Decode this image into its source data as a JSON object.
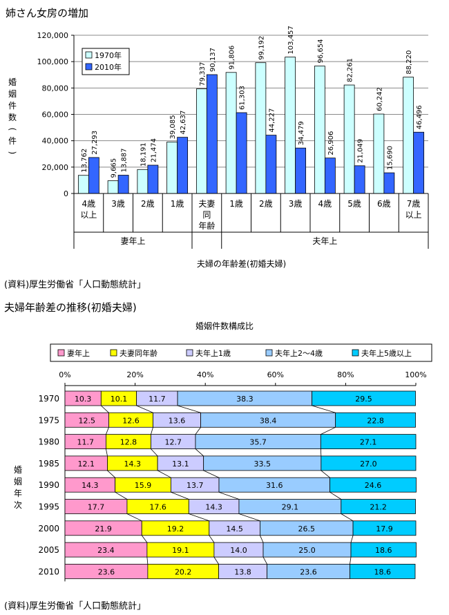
{
  "page": {
    "title1": "姉さん女房の増加",
    "source1": "(資料)厚生労働省「人口動態統計」",
    "title2": "夫婦年齢差の推移(初婚夫婦)",
    "source2": "(資料)厚生労働省「人口動態統計」"
  },
  "chart_data": [
    {
      "type": "bar",
      "ylabel": "婚姻件数(件)",
      "xlabel": "夫婦の年齢差(初婚夫婦)",
      "ylim": [
        0,
        120000
      ],
      "yticks": [
        "0",
        "20,000",
        "40,000",
        "60,000",
        "80,000",
        "100,000",
        "120,000"
      ],
      "grid": true,
      "legend_position": "top-left",
      "categories": [
        [
          "4歳",
          "以上"
        ],
        [
          "3歳"
        ],
        [
          "2歳"
        ],
        [
          "1歳"
        ],
        [
          "夫妻",
          "同",
          "年齢"
        ],
        [
          "1歳"
        ],
        [
          "2歳"
        ],
        [
          "3歳"
        ],
        [
          "4歳"
        ],
        [
          "5歳"
        ],
        [
          "6歳"
        ],
        [
          "7歳",
          "以上"
        ]
      ],
      "groups": [
        {
          "label": "妻年上",
          "span": 4
        },
        {
          "label": "",
          "span": 1
        },
        {
          "label": "夫年上",
          "span": 7
        }
      ],
      "series": [
        {
          "name": "1970年",
          "color": "#ccffff",
          "values": [
            13762,
            9665,
            18191,
            39085,
            79337,
            91806,
            99192,
            103457,
            96654,
            82261,
            60242,
            88220
          ],
          "labels": [
            "13,762",
            "9,665",
            "18,191",
            "39,085",
            "79,337",
            "91,806",
            "99,192",
            "103,457",
            "96,654",
            "82,261",
            "60,242",
            "88,220"
          ]
        },
        {
          "name": "2010年",
          "color": "#3366ff",
          "values": [
            27293,
            13887,
            21474,
            42637,
            90137,
            61303,
            44227,
            34479,
            26906,
            21049,
            15690,
            46496
          ],
          "labels": [
            "27,293",
            "13,887",
            "21,474",
            "42,637",
            "90,137",
            "61,303",
            "44,227",
            "34,479",
            "26,906",
            "21,049",
            "15,690",
            "46,496"
          ]
        }
      ]
    },
    {
      "type": "bar",
      "stacked": true,
      "title": "婚姻件数構成比",
      "ylabel": "婚姻年次",
      "xticks": [
        "0%",
        "20%",
        "40%",
        "60%",
        "80%",
        "100%"
      ],
      "legend_position": "top",
      "categories": [
        "1970",
        "1975",
        "1980",
        "1985",
        "1990",
        "1995",
        "2000",
        "2005",
        "2010"
      ],
      "series": [
        {
          "name": "妻年上",
          "color": "#ff99cc",
          "values": [
            10.3,
            12.5,
            11.7,
            12.1,
            14.3,
            17.7,
            21.9,
            23.4,
            23.6
          ],
          "labels": [
            "10.3",
            "12.5",
            "11.7",
            "12.1",
            "14.3",
            "17.7",
            "21.9",
            "23.4",
            "23.6"
          ]
        },
        {
          "name": "夫妻同年齢",
          "color": "#ffff00",
          "values": [
            10.1,
            12.6,
            12.8,
            14.3,
            15.9,
            17.6,
            19.2,
            19.1,
            20.2
          ],
          "labels": [
            "10.1",
            "12.6",
            "12.8",
            "14.3",
            "15.9",
            "17.6",
            "19.2",
            "19.1",
            "20.2"
          ]
        },
        {
          "name": "夫年上1歳",
          "color": "#ccccff",
          "values": [
            11.7,
            13.6,
            12.7,
            13.1,
            13.7,
            14.3,
            14.5,
            14.0,
            13.8
          ],
          "labels": [
            "11.7",
            "13.6",
            "12.7",
            "13.1",
            "13.7",
            "14.3",
            "14.5",
            "14.0",
            "13.8"
          ]
        },
        {
          "name": "夫年上2〜4歳",
          "color": "#99ccff",
          "values": [
            38.3,
            38.4,
            35.7,
            33.5,
            31.6,
            29.1,
            26.5,
            25.0,
            23.6
          ],
          "labels": [
            "38.3",
            "38.4",
            "35.7",
            "33.5",
            "31.6",
            "29.1",
            "26.5",
            "25.0",
            "23.6"
          ]
        },
        {
          "name": "夫年上5歳以上",
          "color": "#00ccff",
          "values": [
            29.5,
            22.8,
            27.1,
            27.0,
            24.6,
            21.2,
            17.9,
            18.6,
            18.6
          ],
          "labels": [
            "29.5",
            "22.8",
            "27.1",
            "27.0",
            "24.6",
            "21.2",
            "17.9",
            "18.6",
            "18.6"
          ]
        }
      ]
    }
  ]
}
